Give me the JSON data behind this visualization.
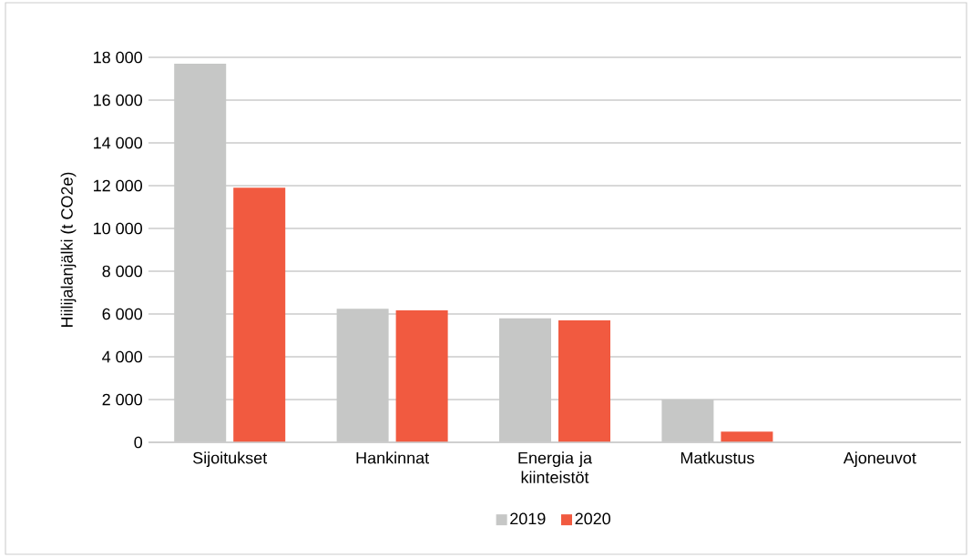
{
  "chart_data": {
    "type": "bar",
    "ylabel": "Hiilijalanjälki (t CO2e)",
    "categories": [
      "Sijoitukset",
      "Hankinnat",
      "Energia ja kiinteistöt",
      "Matkustus",
      "Ajoneuvot"
    ],
    "series": [
      {
        "name": "2019",
        "color": "#c6c7c6",
        "values": [
          17700,
          6250,
          5800,
          2000,
          0
        ]
      },
      {
        "name": "2020",
        "color": "#f15a40",
        "values": [
          11900,
          6170,
          5700,
          500,
          0
        ]
      }
    ],
    "ylim": [
      0,
      18000
    ],
    "yticks": [
      0,
      {
        "value": 2000,
        "label": "2 000"
      },
      {
        "value": 4000,
        "label": "4 000"
      },
      {
        "value": 6000,
        "label": "6 000"
      },
      {
        "value": 8000,
        "label": "8 000"
      },
      {
        "value": 10000,
        "label": "10 000"
      },
      {
        "value": 12000,
        "label": "12 000"
      },
      {
        "value": 14000,
        "label": "14 000"
      },
      {
        "value": 16000,
        "label": "16 000"
      },
      {
        "value": 18000,
        "label": "18 000"
      }
    ],
    "grid": "y",
    "legend": "bottom"
  }
}
